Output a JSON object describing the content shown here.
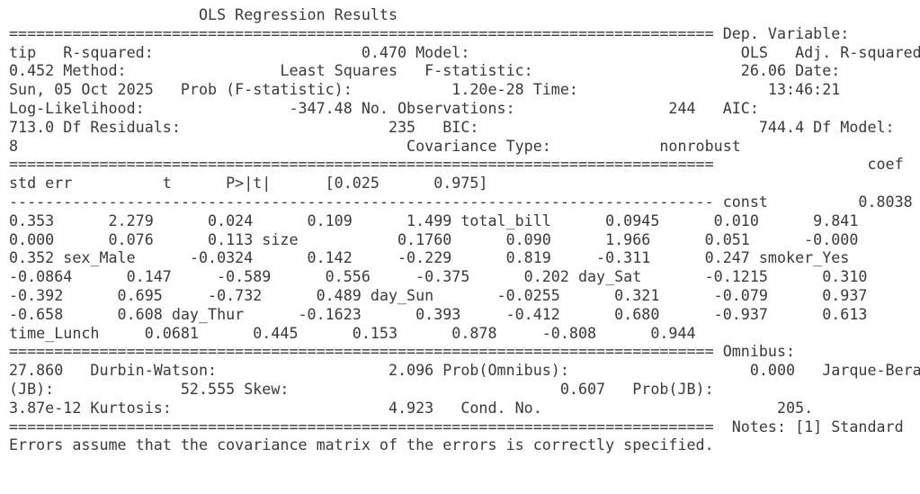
{
  "report": {
    "title": "OLS Regression Results",
    "lines": [
      "                     OLS Regression Results",
      "============================================================================== Dep. Variable:",
      "tip   R-squared:                       0.470 Model:                              OLS   Adj. R-squared:",
      "0.452 Method:                 Least Squares   F-statistic:                       26.06 Date:",
      "Sun, 05 Oct 2025   Prob (F-statistic):           1.20e-28 Time:                     13:46:21",
      "Log-Likelihood:                -347.48 No. Observations:                 244   AIC:",
      "713.0 Df Residuals:                       235   BIC:                               744.4 Df Model:",
      "8                                           Covariance Type:            nonrobust",
      "==============================================================================                 coef",
      "std err          t      P>|t|      [0.025      0.975]",
      "------------------------------------------------------------------------------ const          0.8038",
      "0.353      2.279      0.024      0.109      1.499 total_bill      0.0945      0.010      9.841",
      "0.000      0.076      0.113 size           0.1760      0.090      1.966      0.051      -0.000",
      "0.352 sex_Male      -0.0324      0.142     -0.229      0.819     -0.311      0.247 smoker_Yes",
      "-0.0864      0.147     -0.589      0.556     -0.375      0.202 day_Sat       -0.1215      0.310",
      "-0.392      0.695     -0.732      0.489 day_Sun       -0.0255      0.321      -0.079      0.937",
      "-0.658      0.608 day_Thur      -0.1623      0.393     -0.412      0.680      -0.937      0.613",
      "time_Lunch     0.0681      0.445      0.153      0.878     -0.808      0.944",
      "============================================================================== Omnibus:",
      "27.860   Durbin-Watson:                   2.096 Prob(Omnibus):                    0.000   Jarque-Bera",
      "(JB):              52.555 Skew:                              0.607   Prob(JB):",
      "3.87e-12 Kurtosis:                        4.923   Cond. No.                          205.",
      "==============================================================================  Notes: [1] Standard",
      "Errors assume that the covariance matrix of the errors is correctly specified."
    ]
  }
}
